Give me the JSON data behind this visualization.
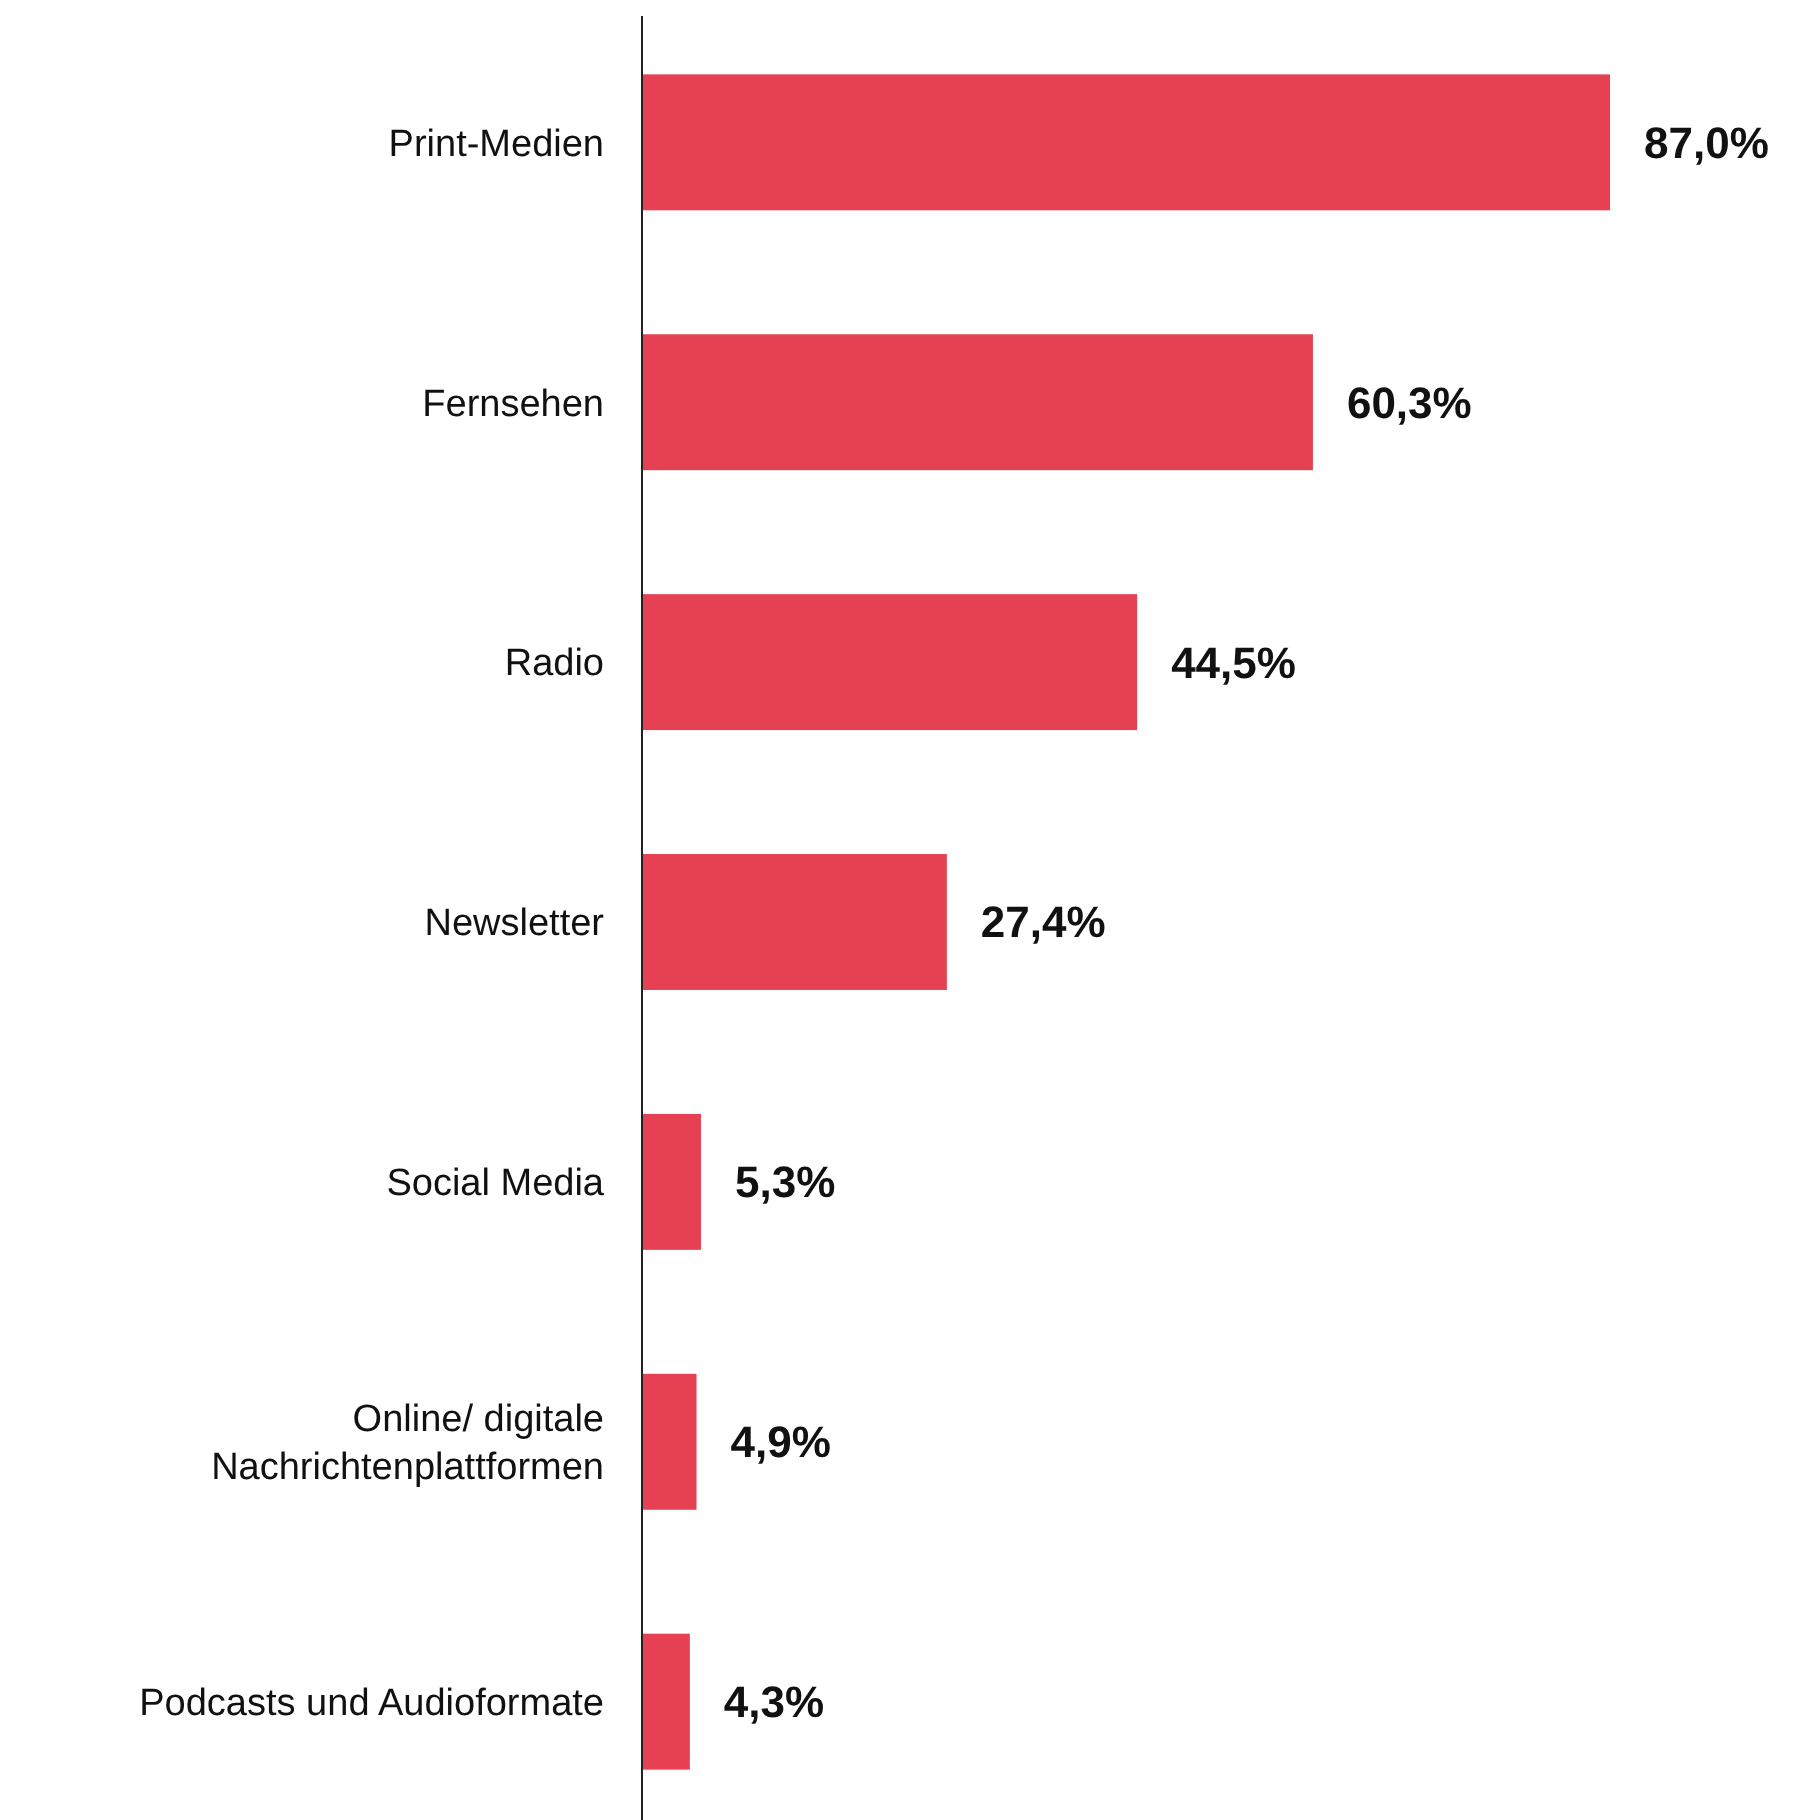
{
  "chart_data": {
    "type": "bar",
    "orientation": "horizontal",
    "categories": [
      "Print-Medien",
      "Fernsehen",
      "Radio",
      "Newsletter",
      "Social Media",
      "Online/ digitale Nachrichtenplattformen",
      "Podcasts und Audioformate"
    ],
    "values": [
      87.0,
      60.3,
      44.5,
      27.4,
      5.3,
      4.9,
      4.3
    ],
    "value_labels": [
      "87,0%",
      "60,3%",
      "44,5%",
      "27,4%",
      "5,3%",
      "4,9%",
      "4,3%"
    ],
    "color": "#e64152"
  }
}
